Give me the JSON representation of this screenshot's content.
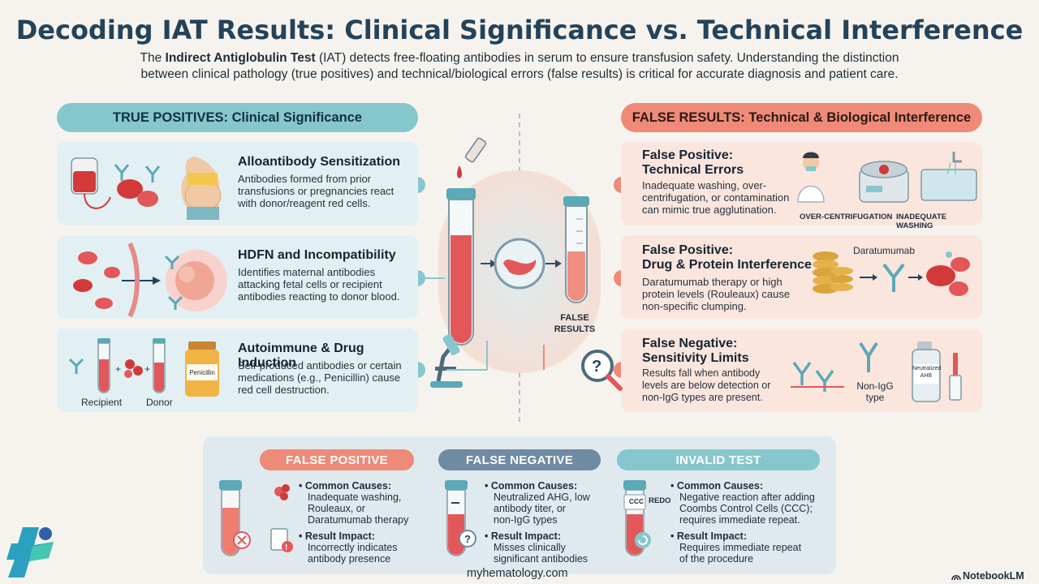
{
  "title": "Decoding IAT Results: Clinical Significance vs. Technical Interference",
  "intro": {
    "pre": "The ",
    "bold": "Indirect Antiglobulin Test",
    "post_line1": " (IAT) detects free-floating antibodies in serum to ensure transfusion safety. Understanding the distinction",
    "line2": "between clinical pathology (true positives) and technical/biological errors (false results) is critical for accurate diagnosis and patient care."
  },
  "left_header": "TRUE POSITIVES: Clinical Significance",
  "right_header": "FALSE RESULTS: Technical & Biological Interference",
  "left_cards": [
    {
      "title": "Alloantibody Sensitization",
      "body": [
        "Antibodies formed from prior",
        "transfusions or pregnancies react",
        "with donor/reagent red cells."
      ]
    },
    {
      "title": "HDFN and Incompatibility",
      "body": [
        "Identifies maternal antibodies",
        "attacking fetal cells or recipient",
        "antibodies reacting to donor blood."
      ]
    },
    {
      "title": "Autoimmune & Drug Induction",
      "body": [
        "Self-produced antibodies or certain",
        "medications (e.g., Penicillin) cause",
        "red cell destruction."
      ],
      "labels": {
        "recipient": "Recipient",
        "donor": "Donor",
        "drug": "Penicillin"
      }
    }
  ],
  "right_cards": [
    {
      "title": [
        "False Positive:",
        "Technical Errors"
      ],
      "body": [
        "Inadequate washing, over-",
        "centrifugation, or contamination",
        "can mimic true agglutination."
      ],
      "captions": [
        "OVER-CENTRIFUGATION",
        "INADEQUATE WASHING"
      ]
    },
    {
      "title": [
        "False Positive:",
        "Drug & Protein Interference"
      ],
      "body": [
        "Daratumumab therapy or high",
        "protein levels (Rouleaux) cause",
        "non-specific clumping."
      ],
      "captions": [
        "Daratumumab"
      ]
    },
    {
      "title": [
        "False Negative:",
        "Sensitivity Limits"
      ],
      "body": [
        "Results fall when antibody",
        "levels are below detection or",
        "non-IgG types are present."
      ],
      "captions": [
        "Non-IgG",
        "type",
        "Neutralized",
        "AHB"
      ]
    }
  ],
  "center": {
    "label": [
      "FALSE",
      "RESULTS"
    ]
  },
  "bottom": [
    {
      "pill": "FALSE POSITIVE",
      "color": "#ee8a78",
      "causes_title": "Common Causes:",
      "causes": [
        "Inadequate washing,",
        "Rouleaux, or",
        "Daratumumab therapy"
      ],
      "impact_title": "Result Impact:",
      "impact": [
        "Incorrectly indicates",
        "antibody presence"
      ]
    },
    {
      "pill": "FALSE NEGATIVE",
      "color": "#6f8aa3",
      "causes_title": "Common Causes:",
      "causes": [
        "Neutralized AHG, low",
        "antibody titer, or",
        "non-IgG types"
      ],
      "impact_title": "Result Impact:",
      "impact": [
        "Misses clinically",
        "significant antibodies"
      ]
    },
    {
      "pill": "INVALID TEST",
      "color": "#86c7cd",
      "causes_title": "Common Causes:",
      "causes": [
        "Negative reaction after adding",
        "Coombs Control Cells (CCC);",
        "requires immediate repeat."
      ],
      "impact_title": "Result Impact:",
      "impact": [
        "Requires immediate repeat",
        "of the procedure"
      ],
      "tube_labels": [
        "CCC",
        "REDO"
      ]
    }
  ],
  "footer": {
    "site": "myhematology.com",
    "brand": "NotebookLM"
  },
  "colors": {
    "teal": "#86c7cd",
    "coral": "#f08a78",
    "navy": "#24435a",
    "slate": "#6f8aa3"
  }
}
